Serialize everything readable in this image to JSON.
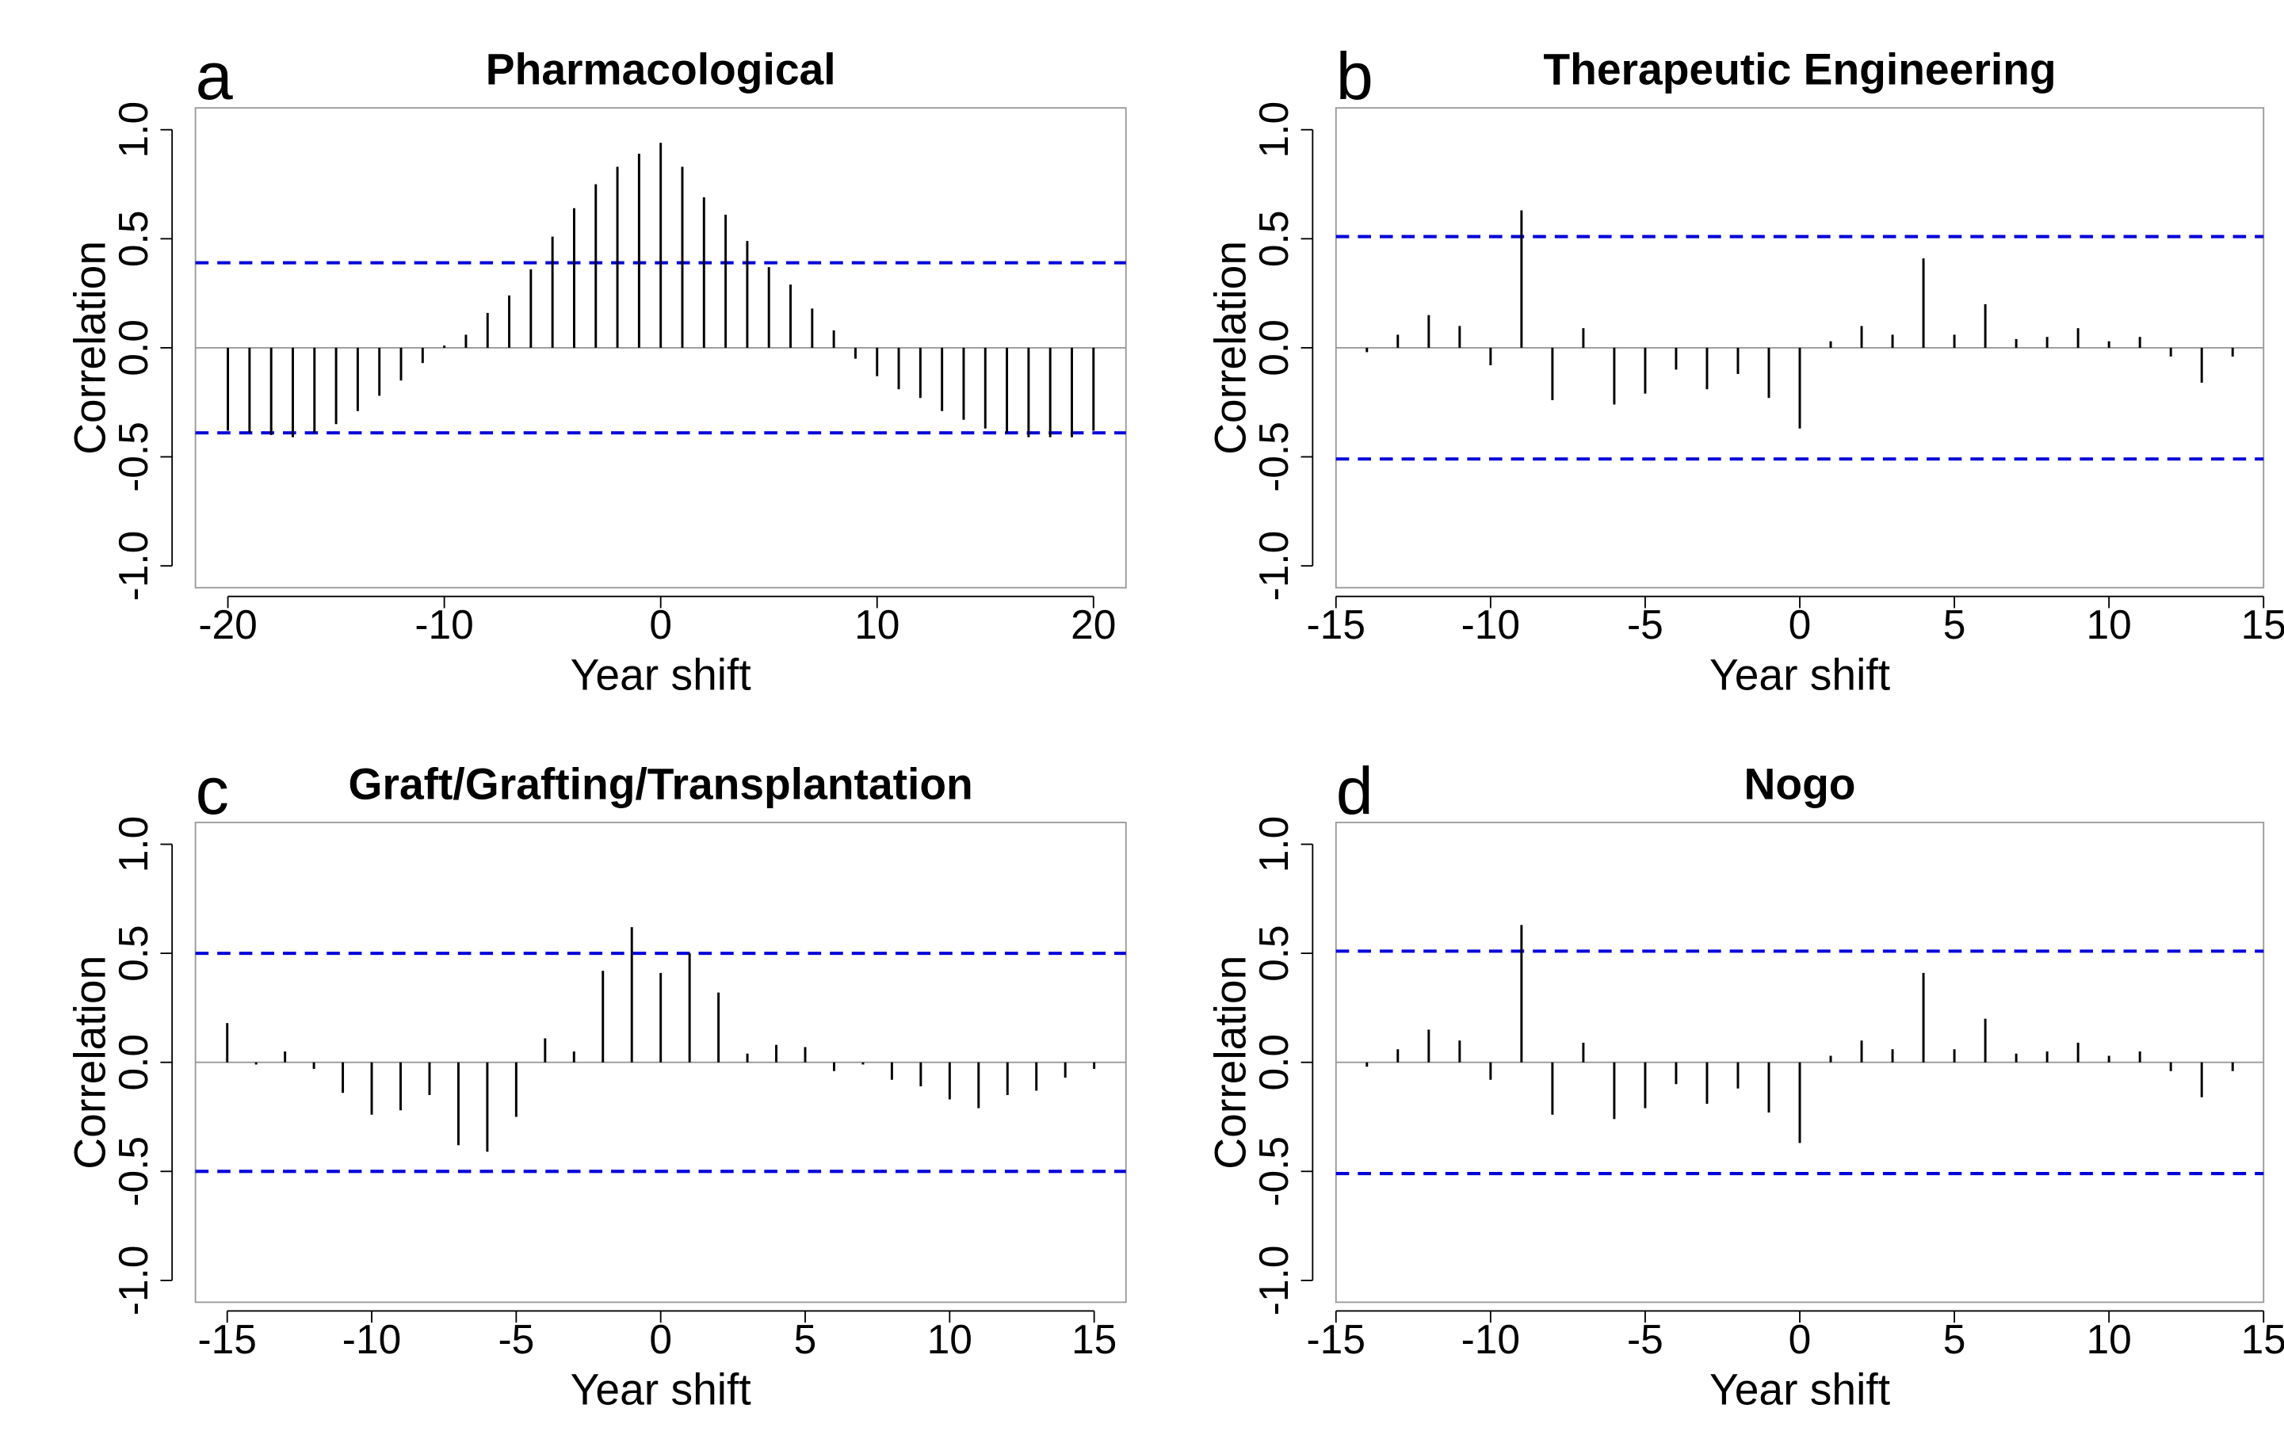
{
  "chart_data": [
    {
      "type": "bar",
      "letter": "a",
      "title": "Pharmacological",
      "xlabel": "Year shift",
      "ylabel": "Correlation",
      "xlim": [
        -21.5,
        21.5
      ],
      "ylim": [
        -1.1,
        1.1
      ],
      "xticks": [
        -20,
        -10,
        0,
        10,
        20
      ],
      "yticks": [
        -1.0,
        -0.5,
        0.0,
        0.5,
        1.0
      ],
      "ytick_labels": [
        "-1.0",
        "-0.5",
        "0.0",
        "0.5",
        "1.0"
      ],
      "xtick_labels": [
        "-20",
        "-10",
        "0",
        "10",
        "20"
      ],
      "conf_level": 0.39,
      "conf_color": "#0000dd",
      "x": [
        -20,
        -19,
        -18,
        -17,
        -16,
        -15,
        -14,
        -13,
        -12,
        -11,
        -10,
        -9,
        -8,
        -7,
        -6,
        -5,
        -4,
        -3,
        -2,
        -1,
        0,
        1,
        2,
        3,
        4,
        5,
        6,
        7,
        8,
        9,
        10,
        11,
        12,
        13,
        14,
        15,
        16,
        17,
        18,
        19,
        20
      ],
      "values": [
        -0.38,
        -0.39,
        -0.4,
        -0.41,
        -0.39,
        -0.35,
        -0.29,
        -0.22,
        -0.15,
        -0.07,
        0.01,
        0.06,
        0.16,
        0.24,
        0.36,
        0.51,
        0.64,
        0.75,
        0.83,
        0.89,
        0.94,
        0.83,
        0.69,
        0.61,
        0.49,
        0.37,
        0.29,
        0.18,
        0.08,
        -0.05,
        -0.13,
        -0.19,
        -0.23,
        -0.29,
        -0.33,
        -0.37,
        -0.39,
        -0.41,
        -0.41,
        -0.41,
        -0.38
      ]
    },
    {
      "type": "bar",
      "letter": "b",
      "title": "Therapeutic Engineering",
      "xlabel": "Year shift",
      "ylabel": "Correlation",
      "xlim": [
        -15,
        15
      ],
      "ylim": [
        -1.1,
        1.1
      ],
      "xticks": [
        -15,
        -10,
        -5,
        0,
        5,
        10,
        15
      ],
      "xtick_labels": [
        "-15",
        "-10",
        "-5",
        "0",
        "5",
        "10",
        "15"
      ],
      "yticks": [
        -1.0,
        -0.5,
        0.0,
        0.5,
        1.0
      ],
      "ytick_labels": [
        "-1.0",
        "-0.5",
        "0.0",
        "0.5",
        "1.0"
      ],
      "conf_level": 0.51,
      "conf_color": "#0000dd",
      "x": [
        -14,
        -13,
        -12,
        -11,
        -10,
        -9,
        -8,
        -7,
        -6,
        -5,
        -4,
        -3,
        -2,
        -1,
        0,
        1,
        2,
        3,
        4,
        5,
        6,
        7,
        8,
        9,
        10,
        11,
        12,
        13,
        14
      ],
      "values": [
        -0.02,
        0.06,
        0.15,
        0.1,
        -0.08,
        0.63,
        -0.24,
        0.09,
        -0.26,
        -0.21,
        -0.1,
        -0.19,
        -0.12,
        -0.23,
        -0.37,
        0.03,
        0.1,
        0.06,
        0.41,
        0.06,
        0.2,
        0.04,
        0.05,
        0.09,
        0.03,
        0.05,
        -0.04,
        -0.16,
        -0.04
      ]
    },
    {
      "type": "bar",
      "letter": "c",
      "title": "Graft/Grafting/Transplantation",
      "xlabel": "Year shift",
      "ylabel": "Correlation",
      "xlim": [
        -16.1,
        16.1
      ],
      "ylim": [
        -1.1,
        1.1
      ],
      "xticks": [
        -15,
        -10,
        -5,
        0,
        5,
        10,
        15
      ],
      "xtick_labels": [
        "-15",
        "-10",
        "-5",
        "0",
        "5",
        "10",
        "15"
      ],
      "yticks": [
        -1.0,
        -0.5,
        0.0,
        0.5,
        1.0
      ],
      "ytick_labels": [
        "-1.0",
        "-0.5",
        "0.0",
        "0.5",
        "1.0"
      ],
      "conf_level": 0.5,
      "conf_color": "#0000dd",
      "x": [
        -15,
        -14,
        -13,
        -12,
        -11,
        -10,
        -9,
        -8,
        -7,
        -6,
        -5,
        -4,
        -3,
        -2,
        -1,
        0,
        1,
        2,
        3,
        4,
        5,
        6,
        7,
        8,
        9,
        10,
        11,
        12,
        13,
        14,
        15
      ],
      "values": [
        0.18,
        -0.01,
        0.05,
        -0.03,
        -0.14,
        -0.24,
        -0.22,
        -0.15,
        -0.38,
        -0.41,
        -0.25,
        0.11,
        0.05,
        0.42,
        0.62,
        0.41,
        0.5,
        0.32,
        0.04,
        0.08,
        0.07,
        -0.04,
        -0.01,
        -0.08,
        -0.11,
        -0.17,
        -0.21,
        -0.15,
        -0.13,
        -0.07,
        -0.03
      ]
    },
    {
      "type": "bar",
      "letter": "d",
      "title": "Nogo",
      "xlabel": "Year shift",
      "ylabel": "Correlation",
      "xlim": [
        -15,
        15
      ],
      "ylim": [
        -1.1,
        1.1
      ],
      "xticks": [
        -15,
        -10,
        -5,
        0,
        5,
        10,
        15
      ],
      "xtick_labels": [
        "-15",
        "-10",
        "-5",
        "0",
        "5",
        "10",
        "15"
      ],
      "yticks": [
        -1.0,
        -0.5,
        0.0,
        0.5,
        1.0
      ],
      "ytick_labels": [
        "-1.0",
        "-0.5",
        "0.0",
        "0.5",
        "1.0"
      ],
      "conf_level": 0.51,
      "conf_color": "#0000dd",
      "x": [
        -14,
        -13,
        -12,
        -11,
        -10,
        -9,
        -8,
        -7,
        -6,
        -5,
        -4,
        -3,
        -2,
        -1,
        0,
        1,
        2,
        3,
        4,
        5,
        6,
        7,
        8,
        9,
        10,
        11,
        12,
        13,
        14
      ],
      "values": [
        -0.02,
        0.06,
        0.15,
        0.1,
        -0.08,
        0.63,
        -0.24,
        0.09,
        -0.26,
        -0.21,
        -0.1,
        -0.19,
        -0.12,
        -0.23,
        -0.37,
        0.03,
        0.1,
        0.06,
        0.41,
        0.06,
        0.2,
        0.04,
        0.05,
        0.09,
        0.03,
        0.05,
        -0.04,
        -0.16,
        -0.04
      ]
    }
  ]
}
